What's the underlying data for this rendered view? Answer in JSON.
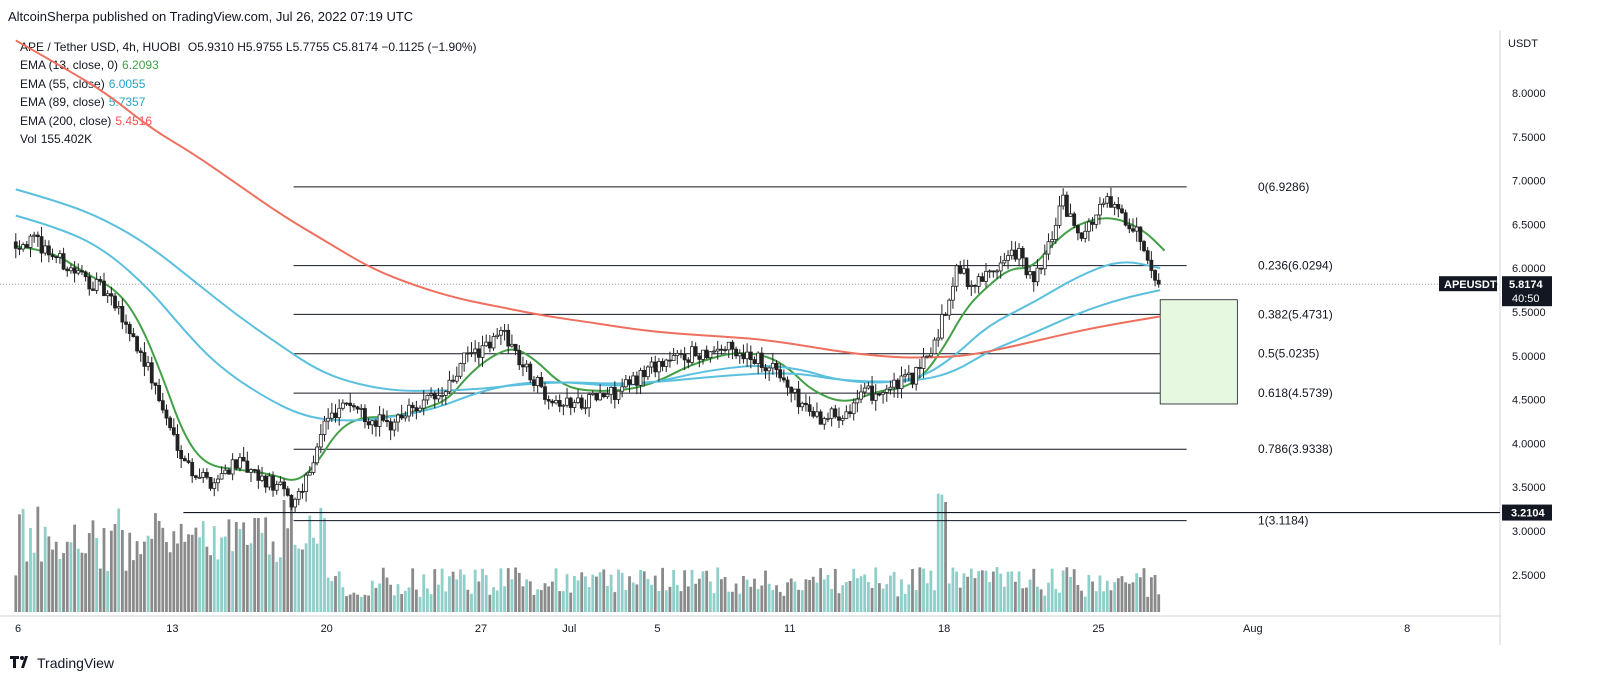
{
  "header": {
    "published": "AltcoinSherpa published on TradingView.com, Jul 26, 2022 07:19 UTC",
    "symbol_line": "APE / Tether USD, 4h, HUOBI",
    "ohlc": "O5.9310 H5.9755 L5.7755 C5.8174 −0.1125 (−1.90%)"
  },
  "indicators": [
    {
      "label": "EMA (13, close, 0)",
      "value": "6.2093",
      "color": "#43a047"
    },
    {
      "label": "EMA (55, close)",
      "value": "6.0055",
      "color": "#26a6c8"
    },
    {
      "label": "EMA (89, close)",
      "value": "5.7357",
      "color": "#26a6c8"
    },
    {
      "label": "EMA (200, close)",
      "value": "5.4516",
      "color": "#ef5350"
    },
    {
      "label": "Vol",
      "value": "155.402K",
      "color": "#131722"
    }
  ],
  "brand": "TradingView",
  "chart_data": {
    "type": "candlestick",
    "y_axis": {
      "unit": "USDT",
      "ticks": [
        "8.0000",
        "7.5000",
        "7.0000",
        "6.5000",
        "6.0000",
        "5.5000",
        "5.0000",
        "4.5000",
        "4.0000",
        "3.5000",
        "3.0000",
        "2.5000"
      ],
      "range": [
        2.0,
        8.5
      ]
    },
    "x_axis": {
      "ticks": [
        {
          "label": "6",
          "day": 6
        },
        {
          "label": "13",
          "day": 13
        },
        {
          "label": "20",
          "day": 20
        },
        {
          "label": "27",
          "day": 27
        },
        {
          "label": "Jul",
          "day": 31
        },
        {
          "label": "5",
          "day": 35
        },
        {
          "label": "11",
          "day": 41
        },
        {
          "label": "18",
          "day": 48
        },
        {
          "label": "25",
          "day": 55
        },
        {
          "label": "Aug",
          "day": 62
        },
        {
          "label": "8",
          "day": 69
        }
      ]
    },
    "price_label": {
      "symbol": "APEUSDT",
      "price": "5.8174",
      "countdown": "40:50"
    },
    "support_label": "3.2104",
    "support_level": 3.2104,
    "last_price": 5.8174,
    "fib_levels": [
      {
        "label": "0(6.9286)",
        "value": 6.9286
      },
      {
        "label": "0.236(6.0294)",
        "value": 6.0294
      },
      {
        "label": "0.382(5.4731)",
        "value": 5.4731
      },
      {
        "label": "0.5(5.0235)",
        "value": 5.0235
      },
      {
        "label": "0.618(4.5739)",
        "value": 4.5739
      },
      {
        "label": "0.786(3.9338)",
        "value": 3.9338
      },
      {
        "label": "1(3.1184)",
        "value": 3.1184
      }
    ],
    "fib_start_day": 18.5,
    "fib_end_day": 59.0,
    "target_box": {
      "start_day": 57.8,
      "end_day": 61.3,
      "top": 5.64,
      "bottom": 4.45,
      "color": "#e6f9e0"
    },
    "price_path": [
      {
        "d": 5.9,
        "p": 6.3
      },
      {
        "d": 7.0,
        "p": 6.3
      },
      {
        "d": 8.5,
        "p": 6.0
      },
      {
        "d": 10.0,
        "p": 5.75
      },
      {
        "d": 11.0,
        "p": 5.4
      },
      {
        "d": 12.0,
        "p": 4.9
      },
      {
        "d": 13.0,
        "p": 4.2
      },
      {
        "d": 14.0,
        "p": 3.7
      },
      {
        "d": 15.0,
        "p": 3.55
      },
      {
        "d": 16.0,
        "p": 3.8
      },
      {
        "d": 17.0,
        "p": 3.6
      },
      {
        "d": 18.0,
        "p": 3.5
      },
      {
        "d": 18.6,
        "p": 3.3
      },
      {
        "d": 19.4,
        "p": 3.7
      },
      {
        "d": 20.0,
        "p": 4.2
      },
      {
        "d": 21.0,
        "p": 4.5
      },
      {
        "d": 22.0,
        "p": 4.3
      },
      {
        "d": 23.0,
        "p": 4.2
      },
      {
        "d": 24.0,
        "p": 4.4
      },
      {
        "d": 25.5,
        "p": 4.55
      },
      {
        "d": 26.5,
        "p": 5.0
      },
      {
        "d": 27.5,
        "p": 5.1
      },
      {
        "d": 28.2,
        "p": 5.3
      },
      {
        "d": 29.0,
        "p": 4.9
      },
      {
        "d": 30.0,
        "p": 4.6
      },
      {
        "d": 31.0,
        "p": 4.45
      },
      {
        "d": 32.0,
        "p": 4.5
      },
      {
        "d": 33.5,
        "p": 4.6
      },
      {
        "d": 35.0,
        "p": 4.9
      },
      {
        "d": 36.5,
        "p": 5.0
      },
      {
        "d": 38.0,
        "p": 5.1
      },
      {
        "d": 39.5,
        "p": 5.0
      },
      {
        "d": 40.5,
        "p": 4.85
      },
      {
        "d": 41.5,
        "p": 4.5
      },
      {
        "d": 42.5,
        "p": 4.3
      },
      {
        "d": 43.5,
        "p": 4.35
      },
      {
        "d": 44.5,
        "p": 4.55
      },
      {
        "d": 46.0,
        "p": 4.65
      },
      {
        "d": 47.0,
        "p": 4.8
      },
      {
        "d": 47.8,
        "p": 5.2
      },
      {
        "d": 48.3,
        "p": 5.6
      },
      {
        "d": 48.8,
        "p": 6.0
      },
      {
        "d": 49.5,
        "p": 5.8
      },
      {
        "d": 50.5,
        "p": 6.0
      },
      {
        "d": 51.5,
        "p": 6.2
      },
      {
        "d": 52.2,
        "p": 5.8
      },
      {
        "d": 53.0,
        "p": 6.3
      },
      {
        "d": 53.5,
        "p": 6.8
      },
      {
        "d": 54.0,
        "p": 6.5
      },
      {
        "d": 54.5,
        "p": 6.4
      },
      {
        "d": 55.5,
        "p": 6.75
      },
      {
        "d": 56.5,
        "p": 6.55
      },
      {
        "d": 57.2,
        "p": 6.3
      },
      {
        "d": 57.8,
        "p": 5.9
      }
    ],
    "series": [
      {
        "name": "EMA (13, close, 0)",
        "color": "#43a047",
        "points": [
          [
            5.9,
            6.25
          ],
          [
            7.5,
            6.2
          ],
          [
            9.0,
            5.95
          ],
          [
            10.5,
            5.75
          ],
          [
            11.5,
            5.4
          ],
          [
            12.5,
            4.8
          ],
          [
            13.5,
            4.1
          ],
          [
            14.5,
            3.75
          ],
          [
            16.0,
            3.7
          ],
          [
            17.5,
            3.65
          ],
          [
            18.6,
            3.55
          ],
          [
            19.5,
            3.75
          ],
          [
            20.5,
            4.15
          ],
          [
            21.5,
            4.3
          ],
          [
            23.0,
            4.3
          ],
          [
            24.5,
            4.4
          ],
          [
            25.5,
            4.5
          ],
          [
            26.5,
            4.8
          ],
          [
            27.5,
            5.0
          ],
          [
            28.5,
            5.1
          ],
          [
            29.5,
            4.95
          ],
          [
            30.5,
            4.7
          ],
          [
            31.5,
            4.6
          ],
          [
            33.5,
            4.6
          ],
          [
            35.0,
            4.7
          ],
          [
            36.5,
            4.9
          ],
          [
            38.5,
            5.05
          ],
          [
            40.0,
            5.0
          ],
          [
            41.0,
            4.85
          ],
          [
            42.0,
            4.6
          ],
          [
            43.5,
            4.45
          ],
          [
            45.0,
            4.6
          ],
          [
            46.0,
            4.62
          ],
          [
            47.0,
            4.75
          ],
          [
            48.0,
            5.1
          ],
          [
            49.0,
            5.55
          ],
          [
            50.0,
            5.8
          ],
          [
            51.0,
            6.0
          ],
          [
            52.0,
            6.0
          ],
          [
            53.0,
            6.3
          ],
          [
            54.0,
            6.5
          ],
          [
            55.5,
            6.6
          ],
          [
            57.0,
            6.45
          ],
          [
            58.0,
            6.2
          ]
        ]
      },
      {
        "name": "EMA (55, close)",
        "color": "#5bc0de",
        "points": [
          [
            5.9,
            6.6
          ],
          [
            8.0,
            6.45
          ],
          [
            10.0,
            6.2
          ],
          [
            12.0,
            5.75
          ],
          [
            13.5,
            5.3
          ],
          [
            15.0,
            4.9
          ],
          [
            17.0,
            4.55
          ],
          [
            19.0,
            4.3
          ],
          [
            21.0,
            4.25
          ],
          [
            23.0,
            4.3
          ],
          [
            25.0,
            4.4
          ],
          [
            27.0,
            4.6
          ],
          [
            29.0,
            4.7
          ],
          [
            31.0,
            4.7
          ],
          [
            33.0,
            4.65
          ],
          [
            35.0,
            4.7
          ],
          [
            37.0,
            4.82
          ],
          [
            39.5,
            4.9
          ],
          [
            41.5,
            4.85
          ],
          [
            43.0,
            4.73
          ],
          [
            45.0,
            4.68
          ],
          [
            47.0,
            4.75
          ],
          [
            48.5,
            5.0
          ],
          [
            50.0,
            5.35
          ],
          [
            52.0,
            5.6
          ],
          [
            54.0,
            5.9
          ],
          [
            56.0,
            6.1
          ],
          [
            57.8,
            6.0
          ]
        ]
      },
      {
        "name": "EMA (89, close)",
        "color": "#5bc0de",
        "points": [
          [
            5.9,
            6.9
          ],
          [
            8.0,
            6.75
          ],
          [
            10.0,
            6.55
          ],
          [
            12.0,
            6.25
          ],
          [
            14.0,
            5.85
          ],
          [
            16.0,
            5.45
          ],
          [
            18.0,
            5.1
          ],
          [
            19.5,
            4.85
          ],
          [
            21.0,
            4.7
          ],
          [
            23.0,
            4.6
          ],
          [
            25.0,
            4.6
          ],
          [
            27.0,
            4.62
          ],
          [
            29.0,
            4.68
          ],
          [
            31.0,
            4.7
          ],
          [
            33.0,
            4.68
          ],
          [
            35.0,
            4.7
          ],
          [
            37.0,
            4.75
          ],
          [
            39.5,
            4.8
          ],
          [
            41.5,
            4.8
          ],
          [
            43.0,
            4.73
          ],
          [
            45.0,
            4.7
          ],
          [
            47.0,
            4.72
          ],
          [
            48.5,
            4.82
          ],
          [
            50.0,
            5.05
          ],
          [
            52.0,
            5.25
          ],
          [
            54.0,
            5.48
          ],
          [
            56.0,
            5.65
          ],
          [
            57.8,
            5.75
          ]
        ]
      },
      {
        "name": "EMA (200, close)",
        "color": "#ef6f5e",
        "points": [
          [
            5.9,
            8.6
          ],
          [
            8.0,
            8.3
          ],
          [
            10.0,
            8.0
          ],
          [
            12.0,
            7.6
          ],
          [
            14.0,
            7.3
          ],
          [
            16.0,
            6.95
          ],
          [
            18.0,
            6.6
          ],
          [
            20.0,
            6.3
          ],
          [
            22.0,
            6.0
          ],
          [
            24.0,
            5.8
          ],
          [
            26.0,
            5.65
          ],
          [
            28.0,
            5.55
          ],
          [
            30.0,
            5.45
          ],
          [
            32.0,
            5.38
          ],
          [
            34.0,
            5.3
          ],
          [
            36.0,
            5.25
          ],
          [
            38.0,
            5.22
          ],
          [
            40.0,
            5.18
          ],
          [
            42.0,
            5.1
          ],
          [
            44.0,
            5.02
          ],
          [
            46.0,
            4.98
          ],
          [
            47.5,
            4.98
          ],
          [
            49.0,
            5.0
          ],
          [
            51.0,
            5.1
          ],
          [
            53.0,
            5.22
          ],
          [
            55.0,
            5.33
          ],
          [
            57.8,
            5.45
          ]
        ]
      }
    ]
  }
}
